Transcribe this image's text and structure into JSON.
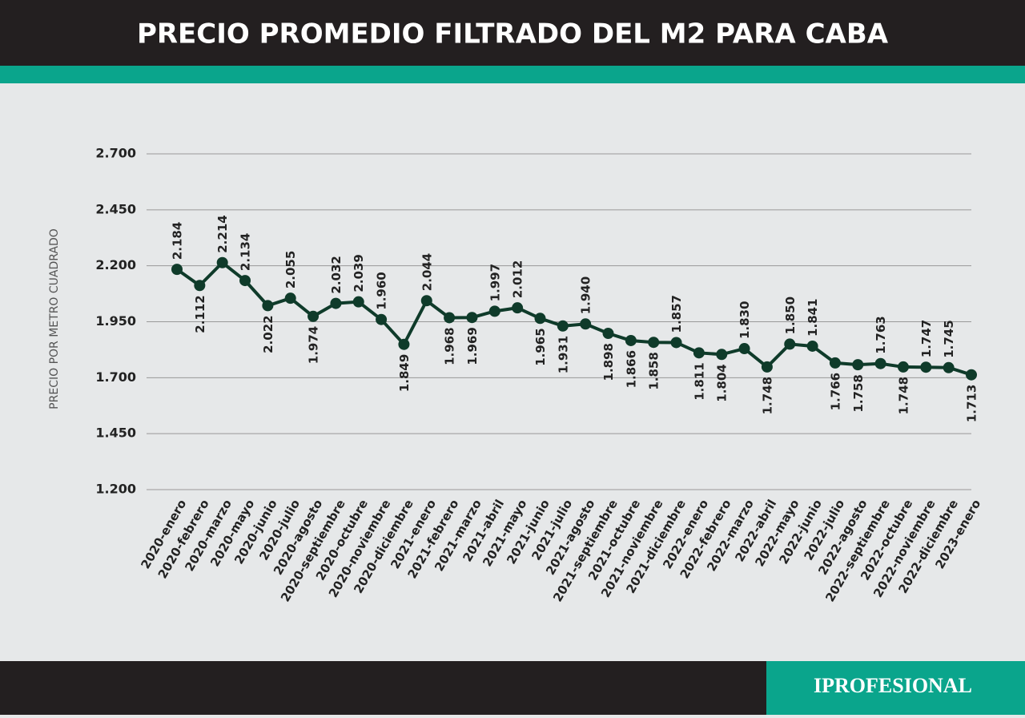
{
  "chart_data": {
    "type": "line",
    "title": "PRECIO PROMEDIO FILTRADO DEL M2 PARA CABA",
    "y_label": "PRECIO POR METRO CUADRADO",
    "brand": "IPROFESIONAL",
    "categories": [
      "2020-enero",
      "2020-febrero",
      "2020-marzo",
      "2020-mayo",
      "2020-junio",
      "2020-julio",
      "2020-agosto",
      "2020-septiembre",
      "2020-octubre",
      "2020-noviembre",
      "2020-diciembre",
      "2021-enero",
      "2021-febrero",
      "2021-marzo",
      "2021-abril",
      "2021-mayo",
      "2021-junio",
      "2021-julio",
      "2021-agosto",
      "2021-septiembre",
      "2021-octubre",
      "2021-noviembre",
      "2021-diciembre",
      "2022-enero",
      "2022-febrero",
      "2022-marzo",
      "2022-abril",
      "2022-mayo",
      "2022-junio",
      "2022-julio",
      "2022-agosto",
      "2022-septiembre",
      "2022-octubre",
      "2022-noviembre",
      "2022-diciembre",
      "2023-enero"
    ],
    "values": [
      2184,
      2112,
      2214,
      2134,
      2022,
      2055,
      1974,
      2032,
      2039,
      1960,
      1849,
      2044,
      1968,
      1969,
      1997,
      2012,
      1965,
      1931,
      1940,
      1898,
      1866,
      1858,
      1857,
      1811,
      1804,
      1830,
      1748,
      1850,
      1841,
      1766,
      1758,
      1763,
      1748,
      1747,
      1745,
      1713
    ],
    "value_labels": [
      "2.184",
      "2.112",
      "2.214",
      "2.134",
      "2.022",
      "2.055",
      "1.974",
      "2.032",
      "2.039",
      "1.960",
      "1.849",
      "2.044",
      "1.968",
      "1.969",
      "1.997",
      "2.012",
      "1.965",
      "1.931",
      "1.940",
      "1.898",
      "1.866",
      "1.858",
      "1.857",
      "1.811",
      "1.804",
      "1.830",
      "1.748",
      "1.850",
      "1.841",
      "1.766",
      "1.758",
      "1.763",
      "1.748",
      "1.747",
      "1.745",
      "1.713"
    ],
    "color": "#0f3b2a",
    "ylim": [
      1200,
      2700
    ],
    "yticks": [
      {
        "value": 1200,
        "label": "1.200"
      },
      {
        "value": 1450,
        "label": "1.450"
      },
      {
        "value": 1700,
        "label": "1.700"
      },
      {
        "value": 1950,
        "label": "1.950"
      },
      {
        "value": 2200,
        "label": "2.200"
      },
      {
        "value": 2450,
        "label": "2.450"
      },
      {
        "value": 2700,
        "label": "2.700"
      }
    ],
    "grid": true
  }
}
